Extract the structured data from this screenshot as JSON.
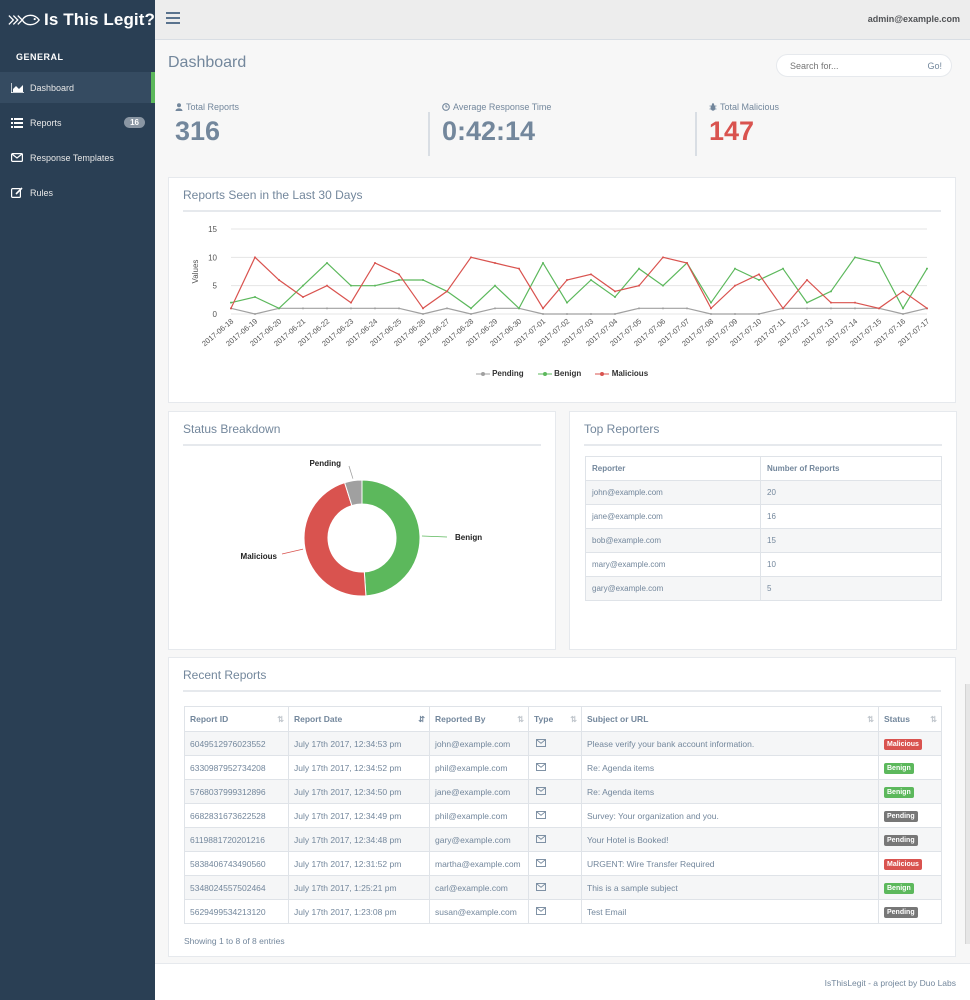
{
  "brand": {
    "title": "Is This Legit?"
  },
  "sidebar": {
    "section": "GENERAL",
    "items": [
      {
        "label": "Dashboard",
        "icon": "area-chart-icon",
        "active": true
      },
      {
        "label": "Reports",
        "icon": "list-icon",
        "badge": "16"
      },
      {
        "label": "Response Templates",
        "icon": "envelope-icon"
      },
      {
        "label": "Rules",
        "icon": "edit-icon"
      }
    ]
  },
  "topnav": {
    "user": "admin@example.com"
  },
  "main": {
    "title": "Dashboard",
    "search": {
      "placeholder": "Search for...",
      "button": "Go!"
    }
  },
  "stats": [
    {
      "label": "Total Reports",
      "value": "316",
      "icon": "user-icon"
    },
    {
      "label": "Average Response Time",
      "value": "0:42:14",
      "icon": "clock-icon"
    },
    {
      "label": "Total Malicious",
      "value": "147",
      "icon": "bug-icon"
    }
  ],
  "line_panel": {
    "title": "Reports Seen in the Last 30 Days"
  },
  "status_panel": {
    "title": "Status Breakdown"
  },
  "reporters_panel": {
    "title": "Top Reporters",
    "headers": [
      "Reporter",
      "Number of Reports"
    ],
    "rows": [
      [
        "john@example.com",
        "20"
      ],
      [
        "jane@example.com",
        "16"
      ],
      [
        "bob@example.com",
        "15"
      ],
      [
        "mary@example.com",
        "10"
      ],
      [
        "gary@example.com",
        "5"
      ]
    ]
  },
  "recent_panel": {
    "title": "Recent Reports",
    "headers": [
      "Report ID",
      "Report Date",
      "Reported By",
      "Type",
      "Subject or URL",
      "Status"
    ],
    "rows": [
      [
        "6049512976023552",
        "July 17th 2017, 12:34:53 pm",
        "john@example.com",
        "Please verify your bank account information.",
        "Malicious"
      ],
      [
        "6330987952734208",
        "July 17th 2017, 12:34:52 pm",
        "phil@example.com",
        "Re: Agenda items",
        "Benign"
      ],
      [
        "5768037999312896",
        "July 17th 2017, 12:34:50 pm",
        "jane@example.com",
        "Re: Agenda items",
        "Benign"
      ],
      [
        "6682831673622528",
        "July 17th 2017, 12:34:49 pm",
        "phil@example.com",
        "Survey: Your organization and you.",
        "Pending"
      ],
      [
        "6119881720201216",
        "July 17th 2017, 12:34:48 pm",
        "gary@example.com",
        "Your Hotel is Booked!",
        "Pending"
      ],
      [
        "5838406743490560",
        "July 17th 2017, 12:31:52 pm",
        "martha@example.com",
        "URGENT: Wire Transfer Required",
        "Malicious"
      ],
      [
        "5348024557502464",
        "July 17th 2017, 1:25:21 pm",
        "carl@example.com",
        "This is a sample subject",
        "Benign"
      ],
      [
        "5629499534213120",
        "July 17th 2017, 1:23:08 pm",
        "susan@example.com",
        "Test Email",
        "Pending"
      ]
    ],
    "showing": "Showing 1 to 8 of 8 entries"
  },
  "footer": {
    "text": "IsThisLegit - a project by Duo Labs"
  },
  "colors": {
    "pending": "#a0a0a0",
    "benign": "#5cb85c",
    "malicious": "#d9534f",
    "sidebar": "#2a3f54"
  },
  "chart_data": [
    {
      "type": "line",
      "title": "Reports Seen in the Last 30 Days",
      "ylabel": "Values",
      "ylim": [
        0,
        15
      ],
      "yticks": [
        0,
        5,
        10,
        15
      ],
      "x": [
        "2017-06-18",
        "2017-06-19",
        "2017-06-20",
        "2017-06-21",
        "2017-06-22",
        "2017-06-23",
        "2017-06-24",
        "2017-06-25",
        "2017-06-26",
        "2017-06-27",
        "2017-06-28",
        "2017-06-29",
        "2017-06-30",
        "2017-07-01",
        "2017-07-02",
        "2017-07-03",
        "2017-07-04",
        "2017-07-05",
        "2017-07-06",
        "2017-07-07",
        "2017-07-08",
        "2017-07-09",
        "2017-07-10",
        "2017-07-11",
        "2017-07-12",
        "2017-07-13",
        "2017-07-14",
        "2017-07-15",
        "2017-07-16",
        "2017-07-17"
      ],
      "series": [
        {
          "name": "Pending",
          "color": "#a0a0a0",
          "values": [
            1,
            0,
            1,
            1,
            1,
            1,
            1,
            1,
            0,
            1,
            0,
            1,
            1,
            0,
            0,
            0,
            0,
            1,
            1,
            1,
            0,
            0,
            0,
            1,
            1,
            1,
            1,
            1,
            0,
            1
          ]
        },
        {
          "name": "Benign",
          "color": "#5cb85c",
          "values": [
            2,
            3,
            1,
            5,
            9,
            5,
            5,
            6,
            6,
            4,
            1,
            5,
            1,
            9,
            2,
            6,
            3,
            8,
            5,
            9,
            2,
            8,
            6,
            8,
            2,
            4,
            10,
            9,
            1,
            8
          ]
        },
        {
          "name": "Malicious",
          "color": "#d9534f",
          "values": [
            1,
            10,
            6,
            3,
            5,
            2,
            9,
            7,
            1,
            4,
            10,
            9,
            8,
            1,
            6,
            7,
            4,
            5,
            10,
            9,
            1,
            5,
            7,
            1,
            6,
            2,
            2,
            1,
            4,
            1
          ]
        }
      ],
      "legend": "bottom"
    },
    {
      "type": "pie",
      "title": "Status Breakdown",
      "labels": [
        "Benign",
        "Malicious",
        "Pending"
      ],
      "values": [
        91,
        86,
        9
      ],
      "colors": [
        "#5cb85c",
        "#d9534f",
        "#a0a0a0"
      ]
    }
  ]
}
